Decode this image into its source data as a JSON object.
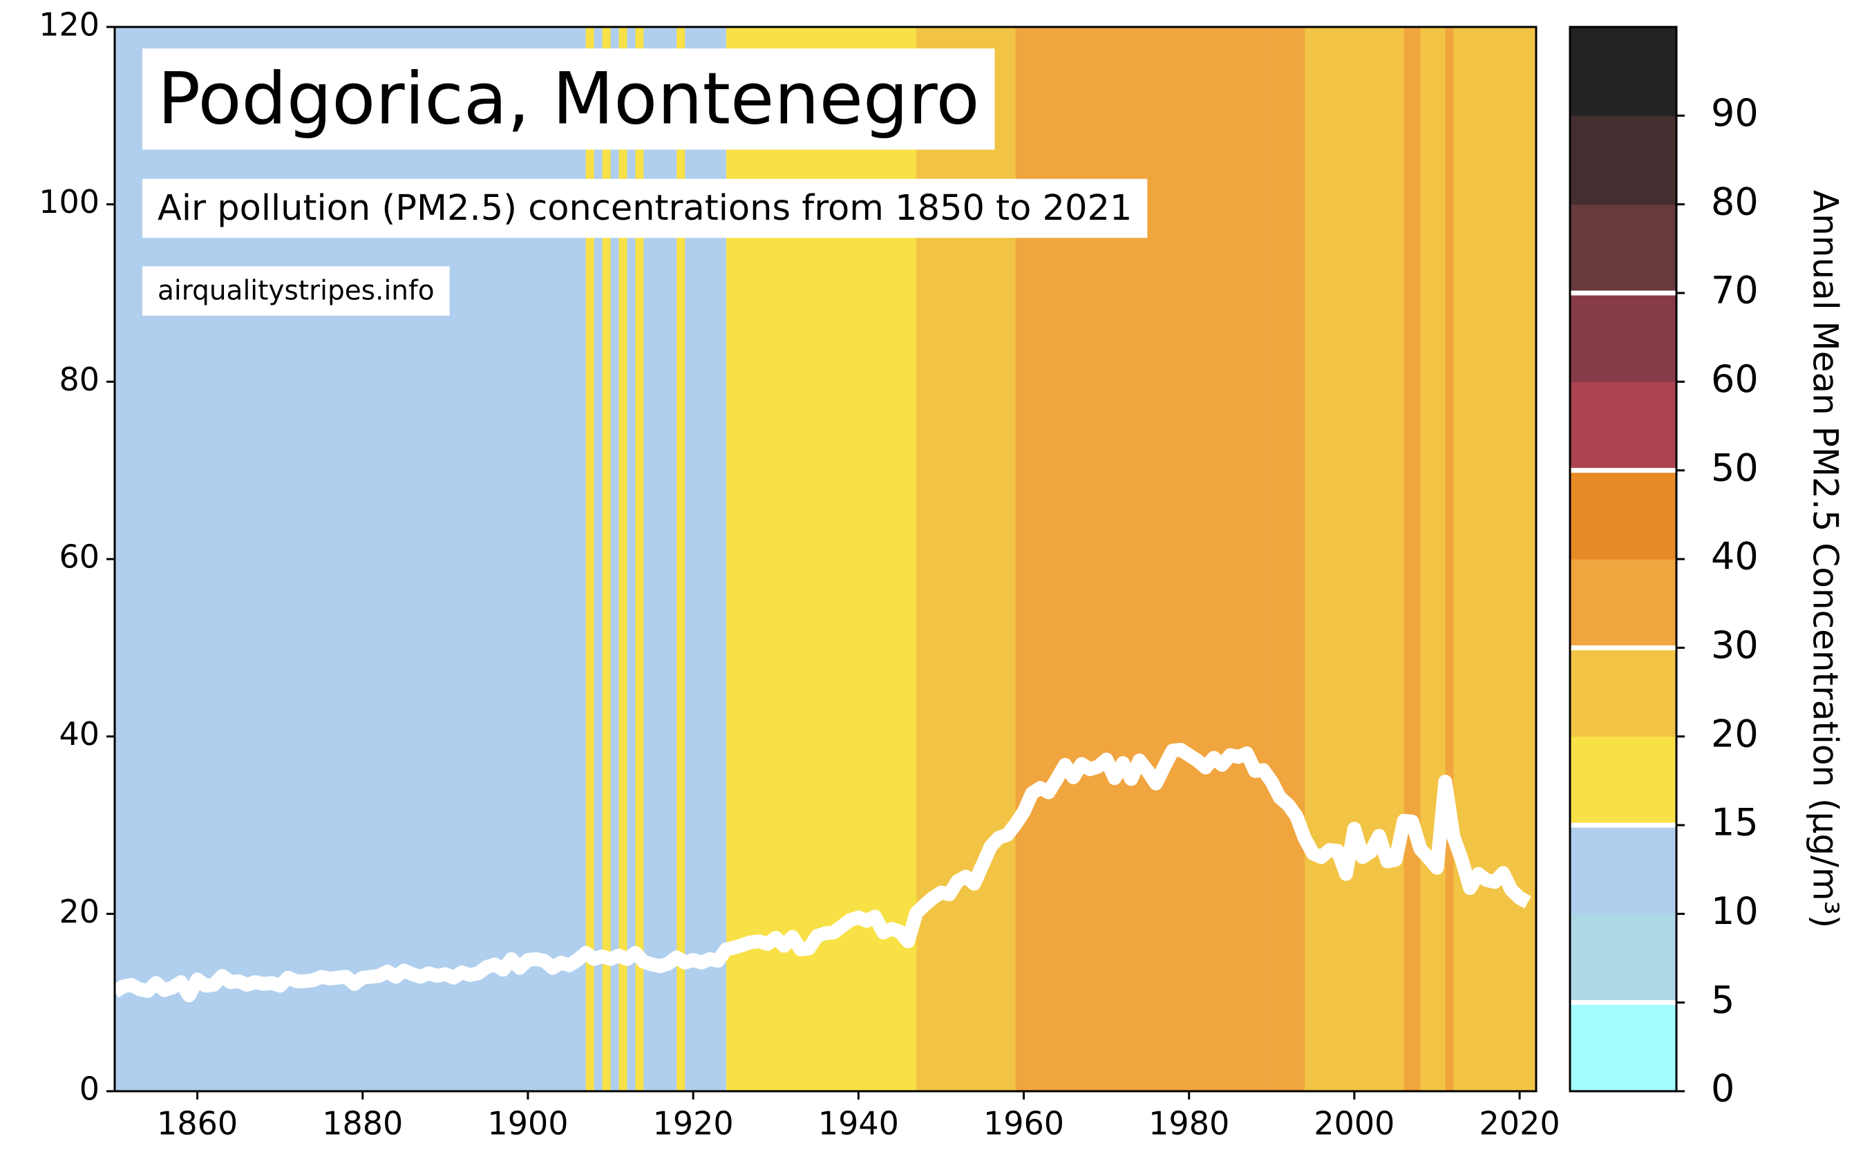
{
  "chart_data": {
    "type": "stripes",
    "title": "Podgorica, Montenegro",
    "subtitle": "Air pollution (PM2.5) concentrations from 1850 to 2021",
    "source": "airqualitystripes.info",
    "x": [
      1850,
      1851,
      1852,
      1853,
      1854,
      1855,
      1856,
      1857,
      1858,
      1859,
      1860,
      1861,
      1862,
      1863,
      1864,
      1865,
      1866,
      1867,
      1868,
      1869,
      1870,
      1871,
      1872,
      1873,
      1874,
      1875,
      1876,
      1877,
      1878,
      1879,
      1880,
      1881,
      1882,
      1883,
      1884,
      1885,
      1886,
      1887,
      1888,
      1889,
      1890,
      1891,
      1892,
      1893,
      1894,
      1895,
      1896,
      1897,
      1898,
      1899,
      1900,
      1901,
      1902,
      1903,
      1904,
      1905,
      1906,
      1907,
      1908,
      1909,
      1910,
      1911,
      1912,
      1913,
      1914,
      1915,
      1916,
      1917,
      1918,
      1919,
      1920,
      1921,
      1922,
      1923,
      1924,
      1925,
      1926,
      1927,
      1928,
      1929,
      1930,
      1931,
      1932,
      1933,
      1934,
      1935,
      1936,
      1937,
      1938,
      1939,
      1940,
      1941,
      1942,
      1943,
      1944,
      1945,
      1946,
      1947,
      1948,
      1949,
      1950,
      1951,
      1952,
      1953,
      1954,
      1955,
      1956,
      1957,
      1958,
      1959,
      1960,
      1961,
      1962,
      1963,
      1964,
      1965,
      1966,
      1967,
      1968,
      1969,
      1970,
      1971,
      1972,
      1973,
      1974,
      1975,
      1976,
      1977,
      1978,
      1979,
      1980,
      1981,
      1982,
      1983,
      1984,
      1985,
      1986,
      1987,
      1988,
      1989,
      1990,
      1991,
      1992,
      1993,
      1994,
      1995,
      1996,
      1997,
      1998,
      1999,
      2000,
      2001,
      2002,
      2003,
      2004,
      2005,
      2006,
      2007,
      2008,
      2009,
      2010,
      2011,
      2012,
      2013,
      2014,
      2015,
      2016,
      2017,
      2018,
      2019,
      2020,
      2021
    ],
    "series": [
      {
        "color": "#ffffff",
        "values": [
          11.2,
          11.8,
          12.0,
          11.5,
          11.3,
          12.2,
          11.4,
          11.7,
          12.3,
          10.8,
          12.6,
          11.9,
          12.0,
          13.0,
          12.3,
          12.4,
          12.0,
          12.3,
          12.1,
          12.2,
          11.9,
          12.8,
          12.4,
          12.4,
          12.5,
          12.9,
          12.7,
          12.8,
          12.9,
          12.1,
          12.8,
          12.9,
          13.0,
          13.5,
          12.9,
          13.6,
          13.2,
          12.9,
          13.3,
          13.0,
          13.2,
          12.8,
          13.4,
          13.1,
          13.3,
          14.0,
          14.3,
          13.7,
          14.9,
          13.9,
          14.8,
          14.9,
          14.7,
          13.9,
          14.5,
          14.2,
          14.8,
          15.6,
          14.9,
          15.2,
          14.9,
          15.3,
          14.9,
          15.6,
          14.6,
          14.3,
          14.1,
          14.4,
          15.1,
          14.5,
          14.8,
          14.5,
          14.9,
          14.7,
          16.0,
          16.2,
          16.5,
          16.8,
          16.9,
          16.6,
          17.3,
          16.4,
          17.4,
          16.0,
          16.1,
          17.5,
          17.8,
          17.9,
          18.6,
          19.3,
          19.6,
          19.2,
          19.7,
          17.9,
          18.3,
          18.0,
          16.9,
          20.1,
          21.0,
          21.8,
          22.4,
          22.2,
          23.7,
          24.2,
          23.4,
          25.5,
          27.6,
          28.6,
          28.9,
          30.1,
          31.5,
          33.6,
          34.2,
          33.7,
          35.2,
          36.8,
          35.4,
          36.9,
          36.3,
          36.6,
          37.4,
          35.3,
          37.0,
          35.2,
          37.3,
          36.1,
          34.7,
          36.6,
          38.4,
          38.5,
          37.9,
          37.3,
          36.5,
          37.6,
          36.8,
          37.9,
          37.7,
          38.1,
          36.1,
          36.2,
          34.9,
          33.1,
          32.3,
          31.0,
          28.5,
          26.8,
          26.4,
          27.2,
          27.1,
          24.5,
          29.6,
          26.4,
          27.0,
          28.8,
          25.9,
          26.1,
          30.5,
          30.4,
          27.3,
          26.3,
          25.2,
          34.9,
          28.7,
          26.1,
          22.9,
          24.5,
          23.8,
          23.6,
          24.6,
          22.7,
          21.8,
          21.3
        ]
      }
    ],
    "xlim": [
      1850,
      2022
    ],
    "xticks": [
      1860,
      1880,
      1900,
      1920,
      1940,
      1960,
      1980,
      2000,
      2020
    ],
    "ylim": [
      0,
      120
    ],
    "yticks": [
      0,
      20,
      40,
      60,
      80,
      100,
      120
    ],
    "colorbar": {
      "label": "Annual Mean PM2.5 Concentration (µg/m³)",
      "boundaries": [
        0,
        5,
        10,
        15,
        20,
        30,
        40,
        50,
        60,
        70,
        80,
        90,
        100
      ],
      "colors": [
        "#a3fdfd",
        "#add8e6",
        "#b0cfee",
        "#f8e147",
        "#f2c445",
        "#f0a53f",
        "#e68a26",
        "#ad4450",
        "#873a47",
        "#68393d",
        "#452e30",
        "#232323"
      ],
      "ticks": [
        0,
        5,
        10,
        15,
        20,
        30,
        40,
        50,
        60,
        70,
        80,
        90
      ],
      "lines": [
        5,
        15,
        30,
        50,
        70
      ]
    }
  }
}
